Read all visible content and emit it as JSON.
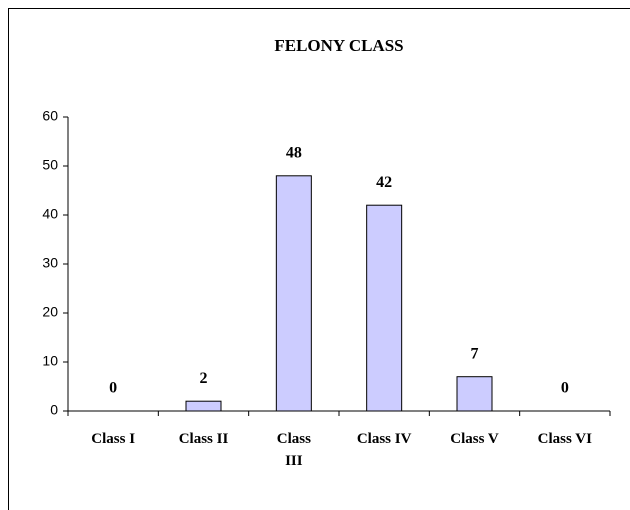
{
  "chart_data": {
    "type": "bar",
    "title": "FELONY CLASS",
    "categories": [
      "Class I",
      "Class II",
      "Class III",
      "Class IV",
      "Class V",
      "Class VI"
    ],
    "values": [
      0,
      2,
      48,
      42,
      7,
      0
    ],
    "color": "#ccccff",
    "ylim": [
      0,
      60
    ],
    "yticks": [
      0,
      10,
      20,
      30,
      40,
      50,
      60
    ],
    "grid": false
  }
}
